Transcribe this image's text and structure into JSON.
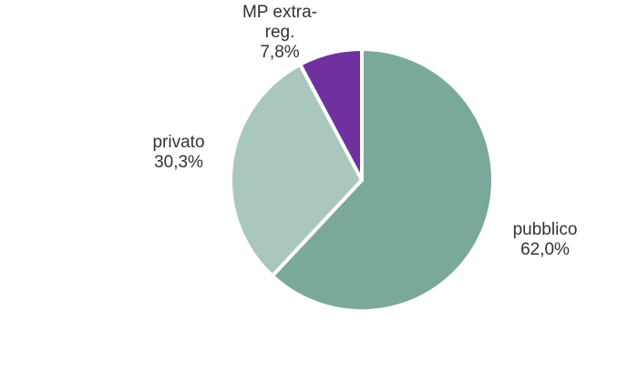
{
  "chart_data": {
    "type": "pie",
    "title": "",
    "slices": [
      {
        "label": "pubblico",
        "value": 62.0,
        "value_label": "62,0%",
        "color": "#7aa89b"
      },
      {
        "label": "privato",
        "value": 30.3,
        "value_label": "30,3%",
        "color": "#a9c7bf"
      },
      {
        "label": "MP extra-reg.",
        "label_lines": [
          "MP extra-",
          "reg."
        ],
        "value": 7.8,
        "value_label": "7,8%",
        "color": "#7030a0"
      }
    ],
    "start_angle": "12 o'clock",
    "direction": "clockwise",
    "legend": "none"
  }
}
